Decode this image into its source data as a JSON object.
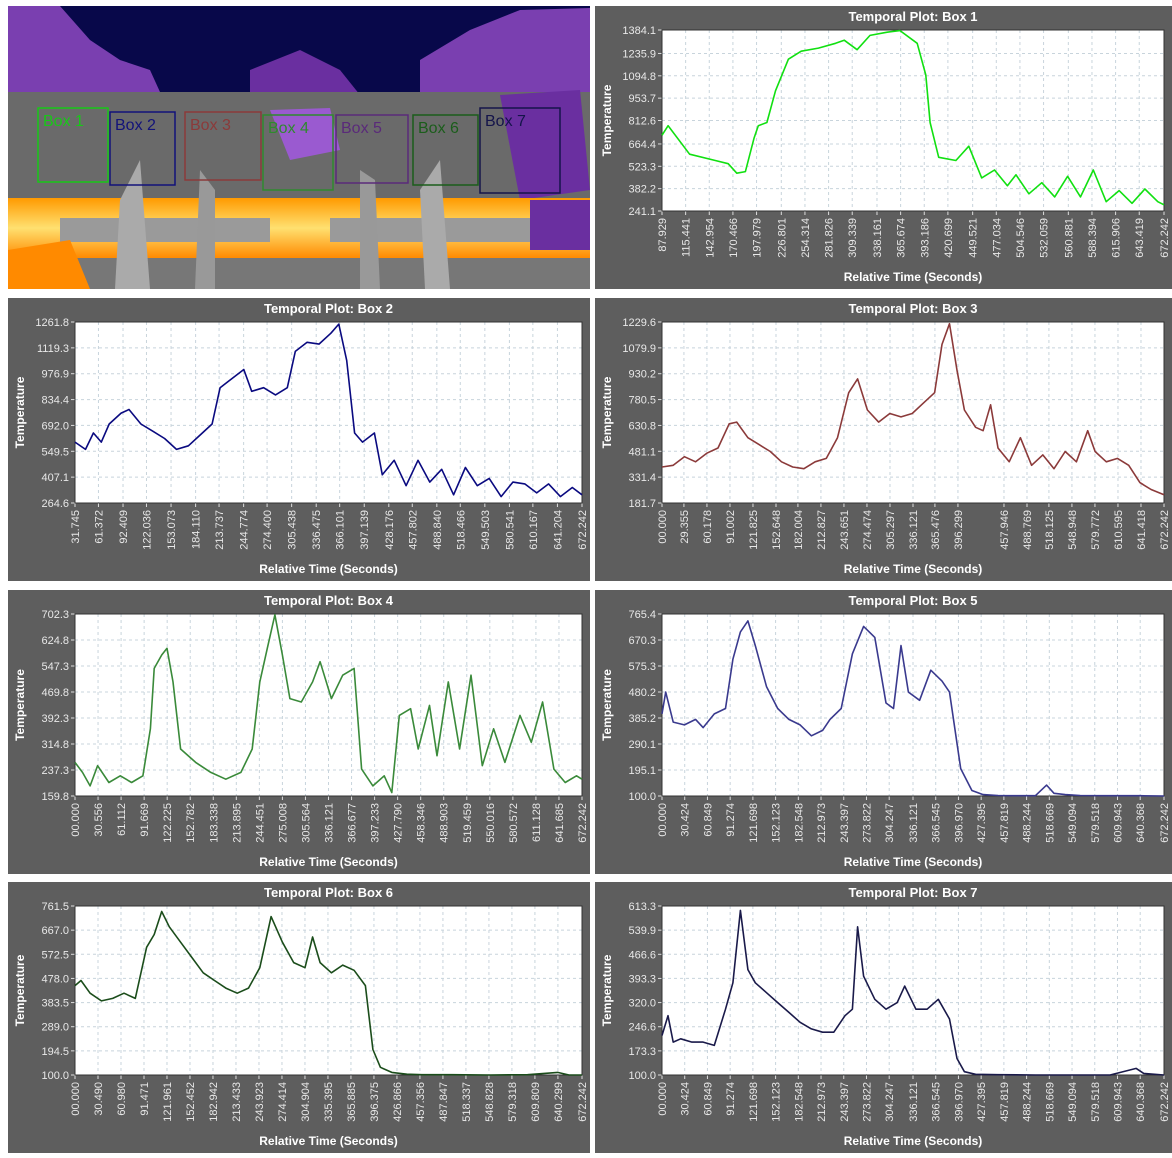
{
  "thermal_image": {
    "boxes": [
      "Box 1",
      "Box 2",
      "Box 3",
      "Box 4",
      "Box 5",
      "Box 6",
      "Box 7"
    ]
  },
  "chart_data": [
    {
      "type": "line",
      "title": "Temporal Plot: Box 1",
      "xlabel": "Relative Time (Seconds)",
      "ylabel": "Temperature",
      "color": "#11e011",
      "grid": true,
      "xlim": [
        87.929,
        672.242
      ],
      "ylim": [
        241.1,
        1384.1
      ],
      "xticks": [
        87.929,
        115.441,
        142.954,
        170.466,
        197.979,
        226.801,
        254.314,
        281.826,
        309.339,
        338.161,
        365.674,
        393.186,
        420.699,
        449.521,
        477.034,
        504.546,
        532.059,
        560.881,
        588.394,
        615.906,
        643.419,
        672.242
      ],
      "yticks": [
        241.1,
        382.2,
        523.3,
        664.4,
        812.6,
        953.7,
        1094.8,
        1235.9,
        1384.1
      ],
      "x": [
        87.929,
        95,
        120,
        150,
        165,
        175,
        185,
        195,
        200,
        210,
        220,
        235,
        250,
        270,
        290,
        300,
        315,
        330,
        350,
        365,
        385,
        395,
        400,
        410,
        430,
        445,
        460,
        475,
        490,
        500,
        515,
        530,
        545,
        560,
        575,
        590,
        605,
        620,
        635,
        650,
        665,
        672.242
      ],
      "values": [
        720,
        780,
        600,
        560,
        540,
        480,
        490,
        700,
        780,
        800,
        1000,
        1200,
        1250,
        1270,
        1300,
        1320,
        1260,
        1350,
        1370,
        1380,
        1300,
        1100,
        800,
        580,
        560,
        650,
        450,
        500,
        400,
        470,
        350,
        420,
        330,
        460,
        330,
        500,
        300,
        370,
        290,
        380,
        300,
        280
      ]
    },
    {
      "type": "line",
      "title": "Temporal Plot: Box 2",
      "xlabel": "Relative Time (Seconds)",
      "ylabel": "Temperature",
      "color": "#0a0a80",
      "grid": true,
      "xlim": [
        31.745,
        672.242
      ],
      "ylim": [
        264.6,
        1261.8
      ],
      "xticks": [
        31.745,
        61.372,
        92.409,
        122.036,
        153.073,
        {
          "value": 184.11,
          "label": "184.110"
        },
        213.737,
        244.774,
        {
          "value": 274.4,
          "label": "274.400"
        },
        305.438,
        336.475,
        366.101,
        397.139,
        428.176,
        457.802,
        {
          "value": 488.84,
          "label": "488.840"
        },
        518.466,
        549.503,
        580.541,
        610.167,
        641.204,
        672.242
      ],
      "yticks": [
        264.6,
        407.1,
        549.5,
        {
          "value": 692,
          "label": "692.0"
        },
        834.4,
        976.9,
        1119.3,
        1261.8
      ],
      "x": [
        31.745,
        45,
        55,
        65,
        75,
        90,
        100,
        115,
        130,
        145,
        160,
        175,
        190,
        205,
        215,
        230,
        245,
        255,
        270,
        285,
        300,
        310,
        325,
        340,
        355,
        365,
        375,
        385,
        395,
        410,
        420,
        435,
        450,
        465,
        480,
        495,
        510,
        525,
        540,
        555,
        570,
        585,
        600,
        615,
        630,
        645,
        660,
        672.242
      ],
      "values": [
        600,
        560,
        650,
        600,
        700,
        760,
        780,
        700,
        660,
        620,
        560,
        580,
        640,
        700,
        900,
        950,
        1000,
        880,
        900,
        860,
        900,
        1100,
        1150,
        1140,
        1200,
        1250,
        1050,
        650,
        600,
        650,
        420,
        500,
        360,
        500,
        380,
        450,
        310,
        460,
        360,
        400,
        300,
        380,
        370,
        320,
        370,
        300,
        350,
        310
      ]
    },
    {
      "type": "line",
      "title": "Temporal Plot: Box 3",
      "xlabel": "Relative Time (Seconds)",
      "ylabel": "Temperature",
      "color": "#8b3a3a",
      "grid": true,
      "xlim": [
        0,
        672.242
      ],
      "ylim": [
        181.7,
        1229.6
      ],
      "xticks": [
        {
          "value": 0,
          "label": "00.000"
        },
        29.355,
        60.178,
        91.002,
        121.825,
        152.648,
        182.004,
        212.827,
        243.651,
        274.474,
        305.297,
        336.121,
        365.476,
        396.299,
        457.946,
        488.769,
        518.125,
        548.948,
        579.772,
        610.595,
        641.418,
        672.242
      ],
      "yticks": [
        181.7,
        331.4,
        481.1,
        630.8,
        780.5,
        930.2,
        1079.9,
        1229.6
      ],
      "x": [
        0,
        15,
        30,
        45,
        60,
        75,
        90,
        100,
        115,
        130,
        145,
        160,
        175,
        190,
        205,
        220,
        235,
        250,
        262,
        275,
        290,
        305,
        320,
        335,
        350,
        365,
        375,
        385,
        395,
        405,
        420,
        430,
        440,
        450,
        465,
        480,
        495,
        510,
        525,
        540,
        555,
        570,
        580,
        595,
        610,
        625,
        640,
        655,
        672.242
      ],
      "values": [
        390,
        400,
        450,
        420,
        470,
        500,
        640,
        650,
        560,
        520,
        480,
        420,
        390,
        380,
        420,
        440,
        560,
        820,
        900,
        720,
        650,
        700,
        680,
        700,
        760,
        820,
        1100,
        1220,
        950,
        720,
        620,
        600,
        750,
        500,
        420,
        560,
        400,
        460,
        380,
        480,
        420,
        600,
        480,
        420,
        440,
        400,
        300,
        260,
        230
      ]
    },
    {
      "type": "line",
      "title": "Temporal Plot: Box 4",
      "xlabel": "Relative Time (Seconds)",
      "ylabel": "Temperature",
      "color": "#3a8a3a",
      "grid": true,
      "xlim": [
        0,
        672.242
      ],
      "ylim": [
        159.8,
        702.3
      ],
      "xticks": [
        {
          "value": 0,
          "label": "00.000"
        },
        30.556,
        61.112,
        91.669,
        122.225,
        152.782,
        183.338,
        213.895,
        244.451,
        275.008,
        305.564,
        336.121,
        366.677,
        397.233,
        {
          "value": 427.79,
          "label": "427.790"
        },
        458.346,
        488.903,
        519.459,
        550.016,
        580.572,
        611.128,
        641.685,
        672.242
      ],
      "yticks": [
        159.8,
        237.3,
        314.8,
        392.3,
        469.8,
        547.3,
        624.8,
        702.3
      ],
      "x": [
        0,
        10,
        20,
        30,
        45,
        60,
        75,
        90,
        100,
        105,
        115,
        122,
        130,
        140,
        160,
        180,
        200,
        220,
        235,
        245,
        255,
        265,
        275,
        285,
        300,
        315,
        325,
        340,
        355,
        370,
        380,
        395,
        410,
        420,
        430,
        445,
        455,
        470,
        480,
        495,
        510,
        525,
        540,
        555,
        570,
        590,
        605,
        620,
        635,
        650,
        665,
        672.242
      ],
      "values": [
        260,
        230,
        190,
        250,
        200,
        220,
        200,
        220,
        360,
        540,
        580,
        600,
        500,
        300,
        260,
        230,
        210,
        230,
        300,
        500,
        600,
        700,
        580,
        450,
        440,
        500,
        560,
        450,
        520,
        540,
        240,
        190,
        220,
        170,
        400,
        420,
        300,
        430,
        280,
        500,
        300,
        520,
        250,
        360,
        260,
        400,
        320,
        440,
        240,
        200,
        220,
        210
      ]
    },
    {
      "type": "line",
      "title": "Temporal Plot: Box 5",
      "xlabel": "Relative Time (Seconds)",
      "ylabel": "Temperature",
      "color": "#3a3a8e",
      "grid": true,
      "xlim": [
        0,
        672.242
      ],
      "ylim": [
        100,
        765.4
      ],
      "xticks": [
        {
          "value": 0,
          "label": "00.000"
        },
        30.424,
        60.849,
        91.274,
        121.698,
        152.123,
        182.548,
        212.973,
        243.397,
        273.822,
        304.247,
        336.121,
        366.545,
        {
          "value": 396.97,
          "label": "396.970"
        },
        427.395,
        457.819,
        488.244,
        518.669,
        549.094,
        579.518,
        609.943,
        640.368,
        672.242
      ],
      "yticks": [
        {
          "value": 100,
          "label": "100.0"
        },
        195.1,
        290.1,
        385.2,
        480.2,
        575.3,
        670.3,
        765.4
      ],
      "x": [
        0,
        5,
        15,
        30,
        45,
        55,
        70,
        85,
        95,
        105,
        115,
        125,
        140,
        155,
        170,
        185,
        200,
        215,
        225,
        240,
        255,
        270,
        285,
        300,
        310,
        320,
        330,
        345,
        360,
        375,
        385,
        400,
        415,
        430,
        450,
        470,
        500,
        515,
        525,
        540,
        560,
        600,
        640,
        672.242
      ],
      "values": [
        400,
        480,
        370,
        360,
        380,
        350,
        400,
        420,
        600,
        700,
        740,
        650,
        500,
        420,
        380,
        360,
        320,
        340,
        380,
        420,
        620,
        720,
        680,
        440,
        420,
        650,
        480,
        450,
        560,
        520,
        480,
        200,
        120,
        105,
        102,
        101,
        101,
        140,
        110,
        105,
        102,
        101,
        101,
        100
      ]
    },
    {
      "type": "line",
      "title": "Temporal Plot: Box 6",
      "xlabel": "Relative Time (Seconds)",
      "ylabel": "Temperature",
      "color": "#1b4d1b",
      "grid": true,
      "xlim": [
        0,
        672.242
      ],
      "ylim": [
        100,
        761.5
      ],
      "xticks": [
        {
          "value": 0,
          "label": "00.000"
        },
        {
          "value": 30.49,
          "label": "30.490"
        },
        {
          "value": 60.98,
          "label": "60.980"
        },
        91.471,
        121.961,
        152.452,
        182.942,
        213.433,
        243.923,
        274.414,
        304.904,
        335.395,
        365.885,
        396.375,
        426.866,
        457.356,
        487.847,
        518.337,
        548.828,
        579.318,
        609.809,
        640.299,
        672.242
      ],
      "yticks": [
        {
          "value": 100,
          "label": "100.0"
        },
        194.5,
        {
          "value": 289,
          "label": "289.0"
        },
        383.5,
        {
          "value": 478,
          "label": "478.0"
        },
        572.5,
        {
          "value": 667,
          "label": "667.0"
        },
        761.5
      ],
      "x": [
        0,
        8,
        20,
        35,
        50,
        65,
        80,
        95,
        105,
        115,
        125,
        140,
        155,
        170,
        185,
        200,
        215,
        230,
        245,
        260,
        275,
        290,
        305,
        315,
        325,
        340,
        355,
        370,
        385,
        395,
        405,
        420,
        440,
        460,
        500,
        550,
        600,
        640,
        655,
        672.242
      ],
      "values": [
        450,
        470,
        420,
        390,
        400,
        420,
        400,
        600,
        650,
        740,
        680,
        620,
        560,
        500,
        470,
        440,
        420,
        440,
        520,
        720,
        620,
        540,
        520,
        640,
        540,
        500,
        530,
        510,
        450,
        200,
        130,
        110,
        103,
        101,
        101,
        100,
        101,
        110,
        100,
        100
      ]
    },
    {
      "type": "line",
      "title": "Temporal Plot: Box 7",
      "xlabel": "Relative Time (Seconds)",
      "ylabel": "Temperature",
      "color": "#1a1a4a",
      "grid": true,
      "xlim": [
        0,
        672.242
      ],
      "ylim": [
        100,
        613.3
      ],
      "xticks": [
        {
          "value": 0,
          "label": "00.000"
        },
        30.424,
        60.849,
        91.274,
        121.698,
        152.123,
        182.548,
        212.973,
        243.397,
        273.822,
        304.247,
        336.121,
        366.545,
        {
          "value": 396.97,
          "label": "396.970"
        },
        427.395,
        457.819,
        488.244,
        518.669,
        549.094,
        579.518,
        609.943,
        640.368,
        672.242
      ],
      "yticks": [
        {
          "value": 100,
          "label": "100.0"
        },
        173.3,
        246.6,
        {
          "value": 320,
          "label": "320.0"
        },
        393.3,
        466.6,
        539.9,
        613.3
      ],
      "x": [
        0,
        8,
        15,
        25,
        40,
        55,
        70,
        85,
        95,
        105,
        115,
        125,
        140,
        155,
        170,
        185,
        200,
        215,
        230,
        245,
        255,
        262,
        270,
        285,
        300,
        315,
        325,
        340,
        355,
        370,
        385,
        395,
        405,
        420,
        450,
        500,
        550,
        600,
        635,
        645,
        672.242
      ],
      "values": [
        220,
        280,
        200,
        210,
        200,
        200,
        190,
        300,
        380,
        600,
        420,
        380,
        350,
        320,
        290,
        260,
        240,
        230,
        230,
        280,
        300,
        550,
        400,
        330,
        300,
        320,
        370,
        300,
        300,
        330,
        270,
        150,
        110,
        102,
        101,
        100,
        100,
        100,
        120,
        105,
        100
      ]
    }
  ]
}
